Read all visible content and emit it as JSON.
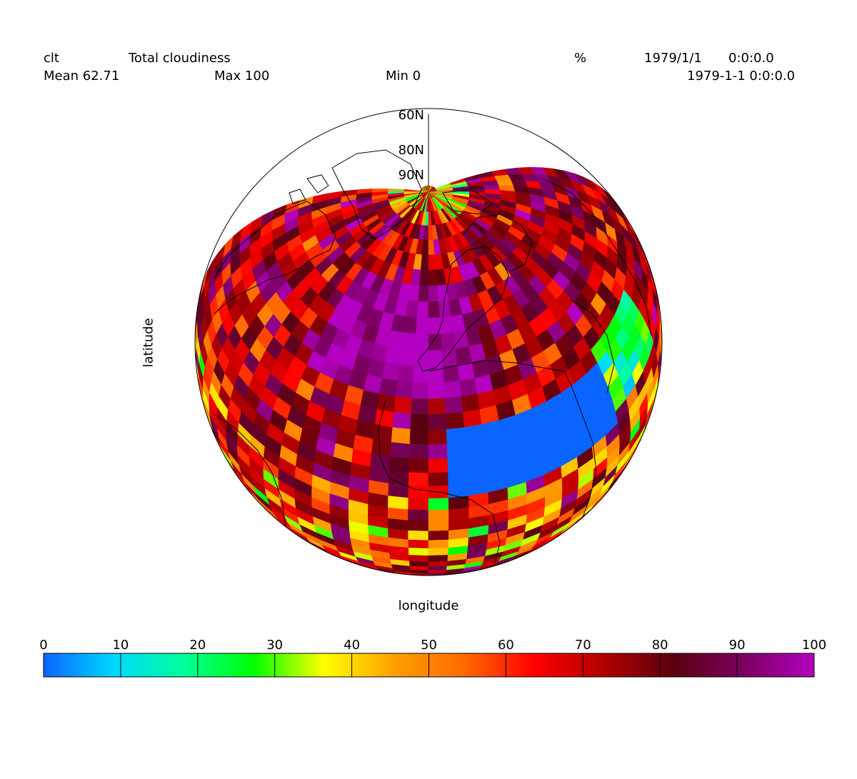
{
  "header": {
    "variable": "clt",
    "long_name": "Total cloudiness",
    "units": "%",
    "date_primary": "1979/1/1",
    "time_primary": "0:0:0.0",
    "date_secondary": "1979-1-1 0:0:0.0",
    "mean_label": "Mean 62.71",
    "max_label": "Max 100",
    "min_label": "Min 0"
  },
  "axes": {
    "xlabel": "longitude",
    "ylabel": "latitude",
    "lat_labels": [
      "60N",
      "80N",
      "90N"
    ]
  },
  "colorbar": {
    "ticks": [
      "0",
      "10",
      "20",
      "30",
      "40",
      "50",
      "60",
      "70",
      "80",
      "90",
      "100"
    ],
    "stops": [
      "#0a64ff",
      "#00d8ff",
      "#00ff9a",
      "#00ff00",
      "#ffff00",
      "#ffa000",
      "#ff6a00",
      "#ff0000",
      "#b00000",
      "#5a0010",
      "#7a0060",
      "#b400c0"
    ]
  },
  "map": {
    "projection": "orthographic",
    "field_min": 0,
    "field_max": 100,
    "field_mean": 62.71
  }
}
